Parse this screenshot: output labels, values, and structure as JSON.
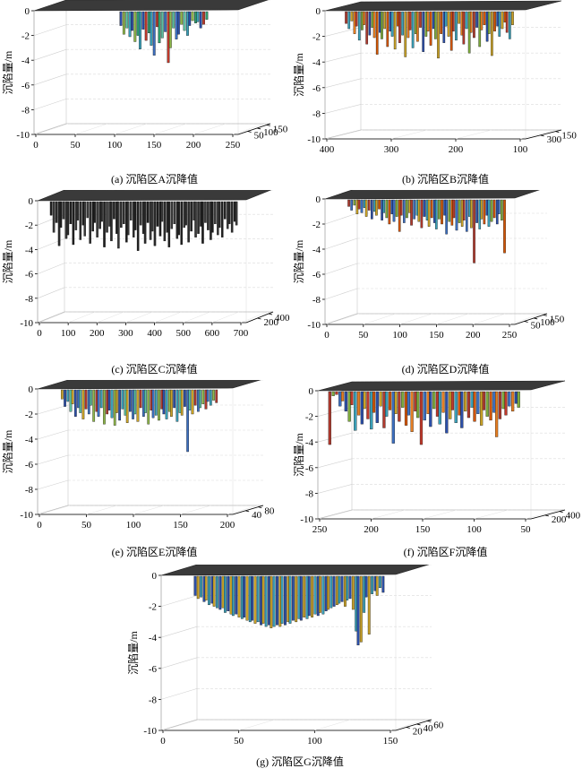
{
  "chart_data": [
    {
      "type": "bar",
      "view": "3d",
      "caption": "(a) 沉陷区A沉降值",
      "zlabel": "沉陷量/m",
      "zticks": [
        "0",
        "-2",
        "-4",
        "-6",
        "-8",
        "-10"
      ],
      "xticks": [
        "0",
        "50",
        "100",
        "150",
        "200",
        "250"
      ],
      "yticks": [
        "50",
        "100",
        "150"
      ],
      "zlim": [
        -10,
        0
      ],
      "colors": [
        "#2c4fa8",
        "#3c6fc0",
        "#3aa0b8",
        "#5bbfa0",
        "#2f9e6e",
        "#8fb84a",
        "#c0392b"
      ],
      "bar_span": [
        0.42,
        0.85
      ],
      "values": [
        -1.2,
        -1.9,
        -1.4,
        -2.1,
        -1.6,
        -2.5,
        -2.0,
        -3.1,
        -1.5,
        -2.4,
        -1.8,
        -2.8,
        -3.6,
        -1.3,
        -2.6,
        -2.2,
        -1.7,
        -4.2,
        -3.0,
        -1.4,
        -2.3,
        -1.9,
        -1.1,
        -1.6,
        -2.0,
        -1.2,
        -0.8,
        -1.0,
        -0.9,
        -1.4,
        -1.1,
        -0.7
      ]
    },
    {
      "type": "bar",
      "view": "3d",
      "caption": "(b) 沉陷区B沉降值",
      "zlabel": "沉陷量/m",
      "zticks": [
        "0",
        "-2",
        "-4",
        "-6",
        "-8",
        "-10"
      ],
      "xticks": [
        "400",
        "300",
        "200",
        "100"
      ],
      "yticks": [
        "300",
        "150"
      ],
      "zlim": [
        -10,
        0
      ],
      "colors": [
        "#b03a2e",
        "#d35400",
        "#e67e22",
        "#c9a227",
        "#7daa3c",
        "#3aa0b8",
        "#2c4fa8"
      ],
      "bar_span": [
        0.1,
        0.94
      ],
      "values": [
        -1.0,
        -1.4,
        -0.8,
        -1.8,
        -1.2,
        -2.3,
        -1.5,
        -1.1,
        -2.6,
        -1.9,
        -1.3,
        -2.1,
        -3.4,
        -1.7,
        -2.2,
        -1.4,
        -2.8,
        -1.6,
        -2.0,
        -3.0,
        -1.2,
        -2.5,
        -1.9,
        -3.6,
        -2.1,
        -1.5,
        -2.9,
        -1.8,
        -2.4,
        -1.3,
        -3.2,
        -2.0,
        -1.6,
        -2.7,
        -1.4,
        -2.2,
        -3.7,
        -1.8,
        -2.5,
        -1.2,
        -2.0,
        -3.1,
        -1.6,
        -2.3,
        -1.0,
        -1.9,
        -2.6,
        -1.4,
        -3.3,
        -1.7,
        -2.1,
        -1.3,
        -2.8,
        -1.5,
        -1.1,
        -2.4,
        -1.8,
        -3.5,
        -1.6,
        -1.2,
        -2.0,
        -1.4,
        -0.9,
        -1.7,
        -2.2,
        -1.1
      ]
    },
    {
      "type": "bar",
      "view": "3d",
      "caption": "(c) 沉陷区C沉降值",
      "zlabel": "沉陷量/m",
      "zticks": [
        "0",
        "-2",
        "-4",
        "-6",
        "-8",
        "-10"
      ],
      "xticks": [
        "0",
        "100",
        "200",
        "300",
        "400",
        "500",
        "600",
        "700"
      ],
      "yticks": [
        "200",
        "400"
      ],
      "zlim": [
        -10,
        0
      ],
      "colors": [
        "#1f1f1f",
        "#2b2b2b",
        "#3a3a3a"
      ],
      "bar_span": [
        0.06,
        0.96
      ],
      "values": [
        -1.2,
        -2.6,
        -1.8,
        -3.7,
        -2.2,
        -1.5,
        -3.1,
        -2.8,
        -1.9,
        -3.6,
        -2.4,
        -1.6,
        -3.2,
        -2.0,
        -2.9,
        -1.4,
        -3.5,
        -2.5,
        -1.8,
        -3.0,
        -2.3,
        -1.7,
        -3.8,
        -2.6,
        -2.1,
        -3.3,
        -1.5,
        -2.7,
        -3.9,
        -2.2,
        -1.9,
        -3.4,
        -2.8,
        -1.6,
        -3.0,
        -2.4,
        -4.1,
        -2.0,
        -2.7,
        -3.5,
        -1.8,
        -3.2,
        -2.5,
        -3.7,
        -2.1,
        -2.9,
        -1.7,
        -3.3,
        -2.6,
        -3.8,
        -2.3,
        -1.9,
        -3.1,
        -2.8,
        -3.6,
        -2.2,
        -2.0,
        -3.4,
        -2.5,
        -1.6,
        -3.0,
        -2.7,
        -2.1,
        -3.5,
        -1.8,
        -2.4,
        -3.2,
        -2.6,
        -1.9,
        -2.8,
        -2.2,
        -3.0,
        -1.5,
        -2.3,
        -1.9,
        -2.6,
        -1.7,
        -2.0
      ]
    },
    {
      "type": "bar",
      "view": "3d",
      "caption": "(d) 沉陷区D沉降值",
      "zlabel": "沉陷量/m",
      "zticks": [
        "0",
        "-2",
        "-4",
        "-6",
        "-8",
        "-10"
      ],
      "xticks": [
        "0",
        "50",
        "100",
        "150",
        "200",
        "250"
      ],
      "yticks": [
        "50",
        "100",
        "150"
      ],
      "zlim": [
        -10,
        0
      ],
      "colors": [
        "#b03a2e",
        "#d35400",
        "#c9a227",
        "#7daa3c",
        "#3aa0b8",
        "#3c6fc0",
        "#2c4fa8"
      ],
      "bar_span": [
        0.12,
        0.95
      ],
      "values": [
        -0.6,
        -0.9,
        -0.5,
        -1.2,
        -0.8,
        -1.1,
        -0.7,
        -1.4,
        -0.9,
        -1.6,
        -1.0,
        -1.3,
        -0.8,
        -1.7,
        -1.1,
        -1.5,
        -2.0,
        -1.2,
        -1.8,
        -1.4,
        -2.6,
        -1.3,
        -1.9,
        -1.5,
        -1.1,
        -2.1,
        -1.6,
        -1.3,
        -1.8,
        -2.3,
        -1.4,
        -1.7,
        -2.2,
        -1.5,
        -1.9,
        -2.4,
        -1.6,
        -2.0,
        -1.3,
        -2.8,
        -1.8,
        -2.1,
        -1.5,
        -2.5,
        -1.9,
        -2.2,
        -1.7,
        -2.6,
        -1.4,
        -2.3,
        -5.1,
        -1.9,
        -2.4,
        -1.6,
        -2.0,
        -1.3,
        -2.2,
        -1.8,
        -1.5,
        -2.0,
        -1.2,
        -1.7,
        -4.3
      ]
    },
    {
      "type": "bar",
      "view": "3d",
      "caption": "(e) 沉陷区E沉降值",
      "zlabel": "沉陷量/m",
      "zticks": [
        "0",
        "-2",
        "-4",
        "-6",
        "-8",
        "-10"
      ],
      "xticks": [
        "0",
        "50",
        "100",
        "150",
        "200"
      ],
      "yticks": [
        "40",
        "80"
      ],
      "zlim": [
        -10,
        0
      ],
      "colors": [
        "#c9a227",
        "#8fb84a",
        "#5bbfa0",
        "#3aa0b8",
        "#3c6fc0",
        "#2c4fa8",
        "#b03a2e"
      ],
      "bar_span": [
        0.12,
        0.92
      ],
      "values": [
        -0.8,
        -1.4,
        -1.0,
        -1.8,
        -1.2,
        -2.2,
        -1.5,
        -1.9,
        -2.4,
        -1.6,
        -2.0,
        -1.3,
        -2.6,
        -1.8,
        -2.2,
        -1.5,
        -2.8,
        -2.0,
        -1.7,
        -2.3,
        -2.9,
        -1.9,
        -2.5,
        -1.6,
        -2.1,
        -2.7,
        -1.8,
        -2.4,
        -2.0,
        -2.6,
        -1.5,
        -2.2,
        -1.9,
        -2.8,
        -1.7,
        -2.3,
        -2.1,
        -2.5,
        -1.6,
        -2.0,
        -2.4,
        -1.8,
        -2.2,
        -1.5,
        -2.6,
        -1.9,
        -2.1,
        -1.4,
        -5.0,
        -1.7,
        -2.0,
        -1.3,
        -1.8,
        -1.5,
        -1.2,
        -1.6,
        -1.0,
        -1.3,
        -0.9,
        -1.1
      ]
    },
    {
      "type": "bar",
      "view": "3d",
      "caption": "(f) 沉陷区F沉降值",
      "zlabel": "沉陷量/m",
      "zticks": [
        "0",
        "-2",
        "-4",
        "-6",
        "-8",
        "-10"
      ],
      "xticks": [
        "250",
        "200",
        "150",
        "100",
        "50"
      ],
      "yticks": [
        "200",
        "400"
      ],
      "zlim": [
        -10,
        0
      ],
      "colors": [
        "#b03a2e",
        "#c0392b",
        "#d35400",
        "#e67e22",
        "#c9a227",
        "#7daa3c",
        "#3aa0b8",
        "#3c6fc0",
        "#2c4fa8"
      ],
      "bar_span": [
        0.05,
        0.95
      ],
      "values": [
        -4.2,
        -0.4,
        -0.3,
        -1.2,
        -0.8,
        -1.6,
        -2.4,
        -1.1,
        -3.1,
        -1.9,
        -2.6,
        -1.4,
        -2.2,
        -3.0,
        -1.7,
        -2.5,
        -1.2,
        -2.9,
        -2.0,
        -1.5,
        -4.1,
        -1.8,
        -2.4,
        -1.3,
        -2.7,
        -1.9,
        -3.2,
        -1.6,
        -2.1,
        -4.2,
        -2.3,
        -1.8,
        -2.8,
        -1.4,
        -2.0,
        -2.6,
        -1.7,
        -3.3,
        -2.2,
        -1.5,
        -2.5,
        -1.9,
        -2.9,
        -1.6,
        -2.1,
        -1.3,
        -2.4,
        -1.8,
        -2.7,
        -1.5,
        -2.0,
        -2.3,
        -1.7,
        -3.6,
        -2.2,
        -1.4,
        -1.9,
        -1.2,
        -1.6,
        -1.0,
        -1.3
      ]
    },
    {
      "type": "bar",
      "view": "3d",
      "caption": "(g) 沉陷区G沉降值",
      "zlabel": "沉陷量/m",
      "zticks": [
        "0",
        "-2",
        "-4",
        "-6",
        "-8",
        "-10"
      ],
      "xticks": [
        "0",
        "50",
        "100",
        "150"
      ],
      "yticks": [
        "20",
        "40",
        "60"
      ],
      "zlim": [
        -10,
        0
      ],
      "colors": [
        "#2c4fa8",
        "#3c6fc0",
        "#3aa0b8",
        "#5bbfa0",
        "#7ec8b0",
        "#c9a227",
        "#d35400",
        "#c0392b"
      ],
      "bar_span": [
        0.14,
        0.95
      ],
      "values": [
        -1.3,
        -1.5,
        -1.4,
        -1.7,
        -1.6,
        -1.9,
        -1.8,
        -2.0,
        -2.1,
        -2.2,
        -2.1,
        -2.4,
        -2.3,
        -2.5,
        -2.6,
        -2.5,
        -2.7,
        -2.8,
        -2.7,
        -2.9,
        -3.0,
        -2.9,
        -3.1,
        -3.0,
        -3.2,
        -3.1,
        -3.3,
        -3.2,
        -3.4,
        -3.3,
        -3.2,
        -3.3,
        -3.1,
        -3.2,
        -3.0,
        -3.1,
        -2.9,
        -3.0,
        -2.8,
        -2.9,
        -2.7,
        -2.8,
        -2.6,
        -2.7,
        -2.5,
        -2.6,
        -2.4,
        -2.5,
        -2.3,
        -2.2,
        -2.1,
        -2.0,
        -1.9,
        -1.8,
        -1.7,
        -2.0,
        -1.6,
        -1.5,
        -2.2,
        -3.6,
        -4.5,
        -4.3,
        -2.4,
        -1.4,
        -3.8,
        -1.2,
        -1.0,
        -1.3,
        -0.8,
        -1.1
      ]
    }
  ]
}
